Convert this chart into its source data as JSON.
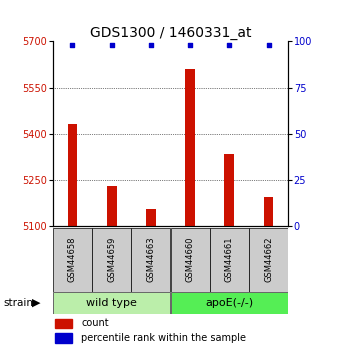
{
  "title": "GDS1300 / 1460331_at",
  "samples": [
    "GSM44658",
    "GSM44659",
    "GSM44663",
    "GSM44660",
    "GSM44661",
    "GSM44662"
  ],
  "counts": [
    5430,
    5230,
    5155,
    5610,
    5335,
    5195
  ],
  "percentiles": [
    98,
    98,
    98,
    98,
    98,
    98
  ],
  "ylim_left": [
    5100,
    5700
  ],
  "ylim_right": [
    0,
    100
  ],
  "yticks_left": [
    5100,
    5250,
    5400,
    5550,
    5700
  ],
  "yticks_right": [
    0,
    25,
    50,
    75,
    100
  ],
  "bar_color": "#cc1100",
  "dot_color": "#0000cc",
  "bar_bottom": 5100,
  "title_fontsize": 10,
  "tick_fontsize": 7,
  "label_color_left": "#cc1100",
  "label_color_right": "#0000cc",
  "group_wt_color": "#bbeeaa",
  "group_ap_color": "#55ee55",
  "sample_box_color": "#cccccc",
  "legend_count_color": "#cc1100",
  "legend_dot_color": "#0000cc"
}
